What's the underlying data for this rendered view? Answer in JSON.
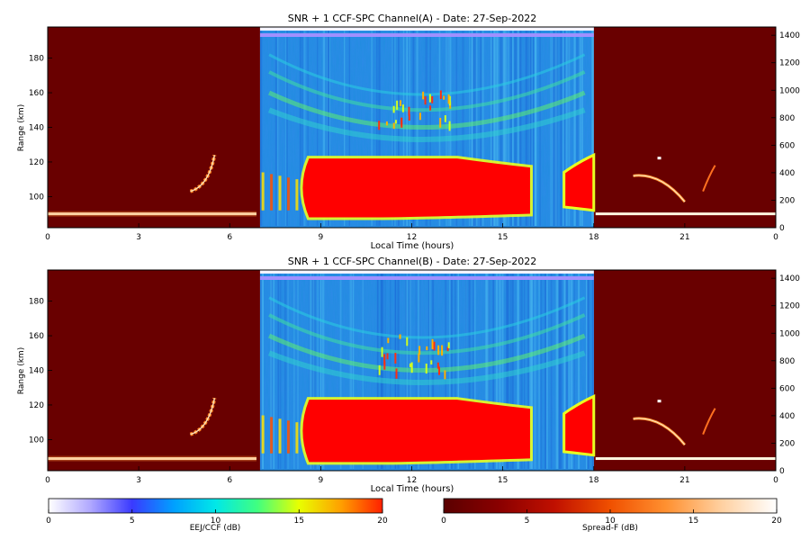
{
  "chart_data": [
    {
      "type": "heatmap",
      "title": "SNR + 1 CCF-SPC Channel(A) - Date: 27-Sep-2022",
      "xlabel": "Local Time (hours)",
      "ylabel": "Range (km)",
      "x_ticks": [
        "0",
        "3",
        "6",
        "9",
        "12",
        "15",
        "18",
        "21",
        "0"
      ],
      "xlim": [
        0,
        24
      ],
      "y_ticks": [
        "100",
        "120",
        "140",
        "160",
        "180"
      ],
      "ylim": [
        82,
        198
      ],
      "y2_ticks": [
        "0",
        "200",
        "400",
        "600",
        "800",
        "1000",
        "1200",
        "1400"
      ],
      "y2lim": [
        0,
        1460
      ],
      "ccf_window_hours": [
        7,
        18
      ],
      "features": {
        "ccf_blob": {
          "t_start": 8.2,
          "t_end": 18,
          "range_low": 88,
          "range_high": 122
        },
        "gap_hours": [
          15.9,
          16.9
        ],
        "night_layer_range_km": 90
      }
    },
    {
      "type": "heatmap",
      "title": "SNR + 1 CCF-SPC Channel(B) - Date: 27-Sep-2022",
      "xlabel": "Local Time (hours)",
      "ylabel": "Range (km)",
      "x_ticks": [
        "0",
        "3",
        "6",
        "9",
        "12",
        "15",
        "18",
        "21",
        "0"
      ],
      "xlim": [
        0,
        24
      ],
      "y_ticks": [
        "100",
        "120",
        "140",
        "160",
        "180"
      ],
      "ylim": [
        82,
        198
      ],
      "y2_ticks": [
        "0",
        "200",
        "400",
        "600",
        "800",
        "1000",
        "1200",
        "1400"
      ],
      "y2lim": [
        0,
        1460
      ],
      "ccf_window_hours": [
        7,
        18
      ],
      "features": {
        "ccf_blob": {
          "t_start": 8.2,
          "t_end": 18,
          "range_low": 87,
          "range_high": 123
        },
        "gap_hours": [
          15.9,
          16.9
        ],
        "night_layer_range_km": 89
      }
    }
  ],
  "colorbars": [
    {
      "label": "EEJ/CCF (dB)",
      "ticks": [
        "0",
        "5",
        "10",
        "15",
        "20"
      ],
      "range": [
        0,
        20
      ],
      "stops": [
        "#ffffff",
        "#b0a8ff",
        "#3a3aff",
        "#00a0ff",
        "#00e8e8",
        "#40ff80",
        "#e8ff00",
        "#ffa000",
        "#ff2000"
      ]
    },
    {
      "label": "Spread-F (dB)",
      "ticks": [
        "0",
        "5",
        "10",
        "15",
        "20"
      ],
      "range": [
        0,
        20
      ],
      "stops": [
        "#5a0000",
        "#8a0000",
        "#c01000",
        "#f05000",
        "#ff9030",
        "#ffd0a0",
        "#ffffff"
      ]
    }
  ],
  "colors": {
    "night_bg": "#690000",
    "ccf_bg": "#2e8ae8",
    "blob": "#ff0000",
    "top_band": "#a090ff"
  }
}
